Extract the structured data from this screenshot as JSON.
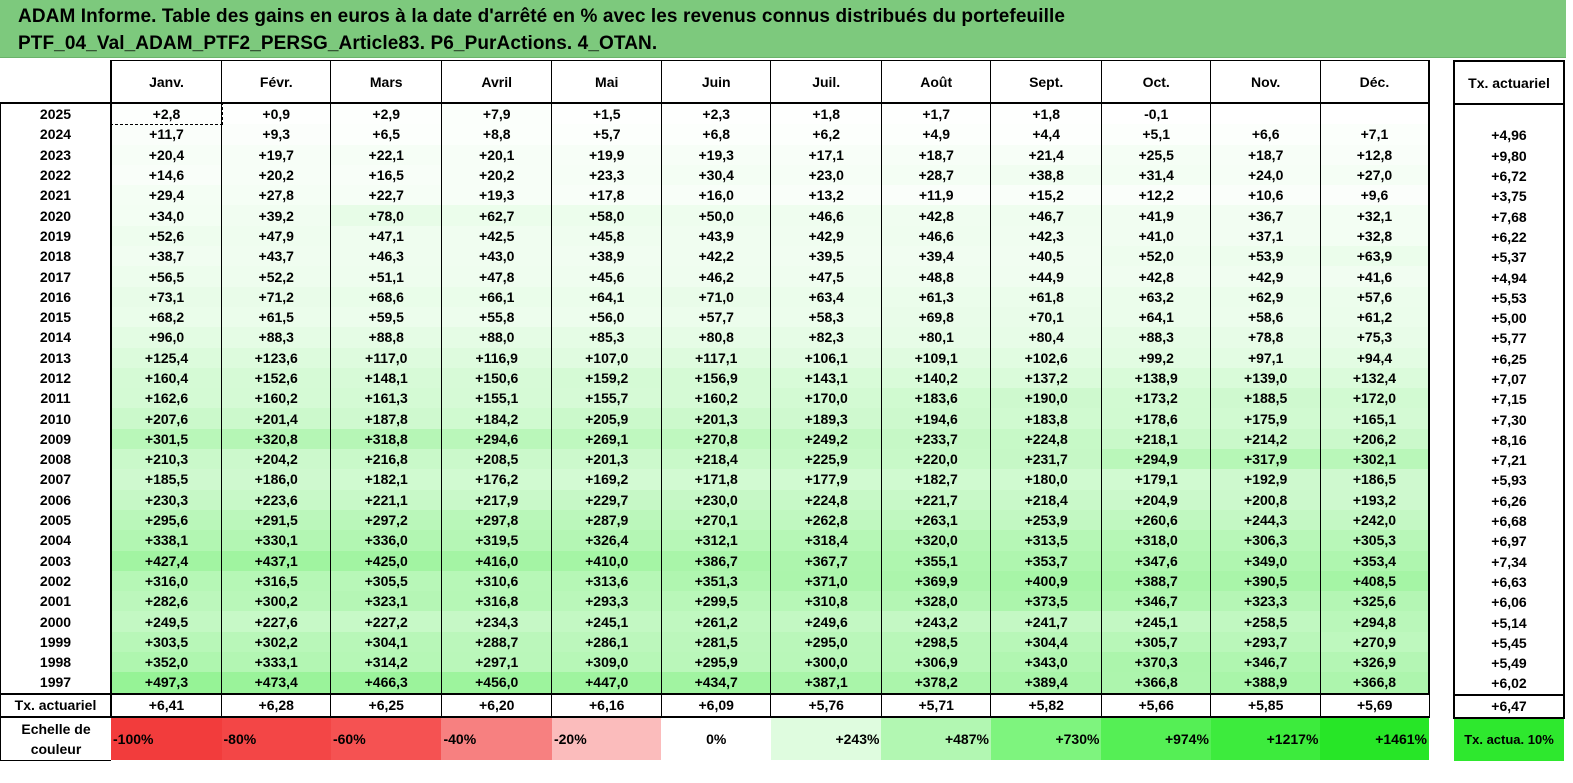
{
  "title": {
    "line1": "ADAM Informe. Table des gains en euros à la date d'arrêté en % avec les revenus connus distribués du portefeuille",
    "line2": "PTF_04_Val_ADAM_PTF2_PERSG_Article83. P6_PurActions. 4_OTAN."
  },
  "months": [
    "Janv.",
    "Févr.",
    "Mars",
    "Avril",
    "Mai",
    "Juin",
    "Juil.",
    "Août",
    "Sept.",
    "Oct.",
    "Nov.",
    "Déc."
  ],
  "right_header": "Tx. actuariel",
  "rows": [
    {
      "year": "2025",
      "values": [
        "+2,8",
        "+0,9",
        "+2,9",
        "+7,9",
        "+1,5",
        "+2,3",
        "+1,8",
        "+1,7",
        "+1,8",
        "-0,1",
        "",
        ""
      ],
      "rate": ""
    },
    {
      "year": "2024",
      "values": [
        "+11,7",
        "+9,3",
        "+6,5",
        "+8,8",
        "+5,7",
        "+6,8",
        "+6,2",
        "+4,9",
        "+4,4",
        "+5,1",
        "+6,6",
        "+7,1"
      ],
      "rate": "+4,96"
    },
    {
      "year": "2023",
      "values": [
        "+20,4",
        "+19,7",
        "+22,1",
        "+20,1",
        "+19,9",
        "+19,3",
        "+17,1",
        "+18,7",
        "+21,4",
        "+25,5",
        "+18,7",
        "+12,8"
      ],
      "rate": "+9,80"
    },
    {
      "year": "2022",
      "values": [
        "+14,6",
        "+20,2",
        "+16,5",
        "+20,2",
        "+23,3",
        "+30,4",
        "+23,0",
        "+28,7",
        "+38,8",
        "+31,4",
        "+24,0",
        "+27,0"
      ],
      "rate": "+6,72"
    },
    {
      "year": "2021",
      "values": [
        "+29,4",
        "+27,8",
        "+22,7",
        "+19,3",
        "+17,8",
        "+16,0",
        "+13,2",
        "+11,9",
        "+15,2",
        "+12,2",
        "+10,6",
        "+9,6"
      ],
      "rate": "+3,75"
    },
    {
      "year": "2020",
      "values": [
        "+34,0",
        "+39,2",
        "+78,0",
        "+62,7",
        "+58,0",
        "+50,0",
        "+46,6",
        "+42,8",
        "+46,7",
        "+41,9",
        "+36,7",
        "+32,1"
      ],
      "rate": "+7,68"
    },
    {
      "year": "2019",
      "values": [
        "+52,6",
        "+47,9",
        "+47,1",
        "+42,5",
        "+45,8",
        "+43,9",
        "+42,9",
        "+46,6",
        "+42,3",
        "+41,0",
        "+37,1",
        "+32,8"
      ],
      "rate": "+6,22"
    },
    {
      "year": "2018",
      "values": [
        "+38,7",
        "+43,7",
        "+46,3",
        "+43,0",
        "+38,9",
        "+42,2",
        "+39,5",
        "+39,4",
        "+40,5",
        "+52,0",
        "+53,9",
        "+63,9"
      ],
      "rate": "+5,37"
    },
    {
      "year": "2017",
      "values": [
        "+56,5",
        "+52,2",
        "+51,1",
        "+47,8",
        "+45,6",
        "+46,2",
        "+47,5",
        "+48,8",
        "+44,9",
        "+42,8",
        "+42,9",
        "+41,6"
      ],
      "rate": "+4,94"
    },
    {
      "year": "2016",
      "values": [
        "+73,1",
        "+71,2",
        "+68,6",
        "+66,1",
        "+64,1",
        "+71,0",
        "+63,4",
        "+61,3",
        "+61,8",
        "+63,2",
        "+62,9",
        "+57,6"
      ],
      "rate": "+5,53"
    },
    {
      "year": "2015",
      "values": [
        "+68,2",
        "+61,5",
        "+59,5",
        "+55,8",
        "+56,0",
        "+57,7",
        "+58,3",
        "+69,8",
        "+70,1",
        "+64,1",
        "+58,6",
        "+61,2"
      ],
      "rate": "+5,00"
    },
    {
      "year": "2014",
      "values": [
        "+96,0",
        "+88,3",
        "+88,8",
        "+88,0",
        "+85,3",
        "+80,8",
        "+82,3",
        "+80,1",
        "+80,4",
        "+88,3",
        "+78,8",
        "+75,3"
      ],
      "rate": "+5,77"
    },
    {
      "year": "2013",
      "values": [
        "+125,4",
        "+123,6",
        "+117,0",
        "+116,9",
        "+107,0",
        "+117,1",
        "+106,1",
        "+109,1",
        "+102,6",
        "+99,2",
        "+97,1",
        "+94,4"
      ],
      "rate": "+6,25"
    },
    {
      "year": "2012",
      "values": [
        "+160,4",
        "+152,6",
        "+148,1",
        "+150,6",
        "+159,2",
        "+156,9",
        "+143,1",
        "+140,2",
        "+137,2",
        "+138,9",
        "+139,0",
        "+132,4"
      ],
      "rate": "+7,07"
    },
    {
      "year": "2011",
      "values": [
        "+162,6",
        "+160,2",
        "+161,3",
        "+155,1",
        "+155,7",
        "+160,2",
        "+170,0",
        "+183,6",
        "+190,0",
        "+173,2",
        "+188,5",
        "+172,0"
      ],
      "rate": "+7,15"
    },
    {
      "year": "2010",
      "values": [
        "+207,6",
        "+201,4",
        "+187,8",
        "+184,2",
        "+205,9",
        "+201,3",
        "+189,3",
        "+194,6",
        "+183,8",
        "+178,6",
        "+175,9",
        "+165,1"
      ],
      "rate": "+7,30"
    },
    {
      "year": "2009",
      "values": [
        "+301,5",
        "+320,8",
        "+318,8",
        "+294,6",
        "+269,1",
        "+270,8",
        "+249,2",
        "+233,7",
        "+224,8",
        "+218,1",
        "+214,2",
        "+206,2"
      ],
      "rate": "+8,16"
    },
    {
      "year": "2008",
      "values": [
        "+210,3",
        "+204,2",
        "+216,8",
        "+208,5",
        "+201,3",
        "+218,4",
        "+225,9",
        "+220,0",
        "+231,7",
        "+294,9",
        "+317,9",
        "+302,1"
      ],
      "rate": "+7,21"
    },
    {
      "year": "2007",
      "values": [
        "+185,5",
        "+186,0",
        "+182,1",
        "+176,2",
        "+169,2",
        "+171,8",
        "+177,9",
        "+182,7",
        "+180,0",
        "+179,1",
        "+192,9",
        "+186,5"
      ],
      "rate": "+5,93"
    },
    {
      "year": "2006",
      "values": [
        "+230,3",
        "+223,6",
        "+221,1",
        "+217,9",
        "+229,7",
        "+230,0",
        "+224,8",
        "+221,7",
        "+218,4",
        "+204,9",
        "+200,8",
        "+193,2"
      ],
      "rate": "+6,26"
    },
    {
      "year": "2005",
      "values": [
        "+295,6",
        "+291,5",
        "+297,2",
        "+297,8",
        "+287,9",
        "+270,1",
        "+262,8",
        "+263,1",
        "+253,9",
        "+260,6",
        "+244,3",
        "+242,0"
      ],
      "rate": "+6,68"
    },
    {
      "year": "2004",
      "values": [
        "+338,1",
        "+330,1",
        "+336,0",
        "+319,5",
        "+326,4",
        "+312,1",
        "+318,4",
        "+320,0",
        "+313,5",
        "+318,0",
        "+306,3",
        "+305,3"
      ],
      "rate": "+6,97"
    },
    {
      "year": "2003",
      "values": [
        "+427,4",
        "+437,1",
        "+425,0",
        "+416,0",
        "+410,0",
        "+386,7",
        "+367,7",
        "+355,1",
        "+353,7",
        "+347,6",
        "+349,0",
        "+353,4"
      ],
      "rate": "+7,34"
    },
    {
      "year": "2002",
      "values": [
        "+316,0",
        "+316,5",
        "+305,5",
        "+310,6",
        "+313,6",
        "+351,3",
        "+371,0",
        "+369,9",
        "+400,9",
        "+388,7",
        "+390,5",
        "+408,5"
      ],
      "rate": "+6,63"
    },
    {
      "year": "2001",
      "values": [
        "+282,6",
        "+300,2",
        "+323,1",
        "+316,8",
        "+293,3",
        "+299,5",
        "+310,8",
        "+328,0",
        "+373,5",
        "+346,7",
        "+323,3",
        "+325,6"
      ],
      "rate": "+6,06"
    },
    {
      "year": "2000",
      "values": [
        "+249,5",
        "+227,6",
        "+227,2",
        "+234,3",
        "+245,1",
        "+261,2",
        "+249,6",
        "+243,2",
        "+241,7",
        "+245,1",
        "+258,5",
        "+294,8"
      ],
      "rate": "+5,14"
    },
    {
      "year": "1999",
      "values": [
        "+303,5",
        "+302,2",
        "+304,1",
        "+288,7",
        "+286,1",
        "+281,5",
        "+295,0",
        "+298,5",
        "+304,4",
        "+305,7",
        "+293,7",
        "+270,9"
      ],
      "rate": "+5,45"
    },
    {
      "year": "1998",
      "values": [
        "+352,0",
        "+333,1",
        "+314,2",
        "+297,1",
        "+309,0",
        "+295,9",
        "+300,0",
        "+306,9",
        "+343,0",
        "+370,3",
        "+346,7",
        "+326,9"
      ],
      "rate": "+5,49"
    },
    {
      "year": "1997",
      "values": [
        "+497,3",
        "+473,4",
        "+466,3",
        "+456,0",
        "+447,0",
        "+434,7",
        "+387,1",
        "+378,2",
        "+389,4",
        "+366,8",
        "+388,9",
        "+366,8"
      ],
      "rate": "+6,02"
    }
  ],
  "footer": {
    "label": "Tx. actuariel",
    "values": [
      "+6,41",
      "+6,28",
      "+6,25",
      "+6,20",
      "+6,16",
      "+6,09",
      "+5,76",
      "+5,71",
      "+5,82",
      "+5,66",
      "+5,85",
      "+5,69"
    ],
    "rate": "+6,47"
  },
  "scale": {
    "label": "Echelle de couleur",
    "steps": [
      {
        "text": "-100%",
        "color": "#f23c3c"
      },
      {
        "text": "-80%",
        "color": "#f34646"
      },
      {
        "text": "-60%",
        "color": "#f55252"
      },
      {
        "text": "-40%",
        "color": "#f78080"
      },
      {
        "text": "-20%",
        "color": "#fbbcbc"
      },
      {
        "text": "0%",
        "color": "#ffffff"
      },
      {
        "text": "+243%",
        "color": "#dffcdf"
      },
      {
        "text": "+487%",
        "color": "#b2f7b2"
      },
      {
        "text": "+730%",
        "color": "#7ef47e"
      },
      {
        "text": "+974%",
        "color": "#55ef55"
      },
      {
        "text": "+1217%",
        "color": "#3deb3d"
      },
      {
        "text": "+1461%",
        "color": "#27e627"
      }
    ],
    "rate_label": "Tx. actua. 10%",
    "rate_color": "#2ee82e"
  },
  "colors": {
    "title_background": "#7dc97d",
    "gain_min": "#ffffff",
    "gain_max": "#27e627"
  }
}
